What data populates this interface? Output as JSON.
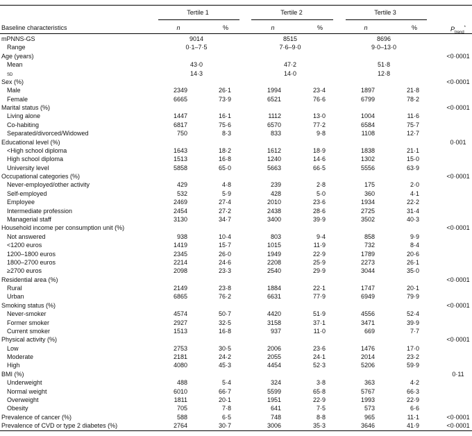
{
  "header": {
    "groups": [
      "Tertile 1",
      "Tertile 2",
      "Tertile 3"
    ],
    "label": "Baseline characteristics",
    "subheads": [
      "n",
      "%",
      "n",
      "%",
      "n",
      "%"
    ],
    "p": {
      "main": "P",
      "sub": "trend",
      "sup": "*"
    }
  },
  "sections": [
    {
      "label": "mPNNS-GS",
      "values": [
        "9014",
        "8515",
        "8696"
      ],
      "rows": [
        {
          "label": "Range",
          "values": [
            "0·1–7·5",
            "7·6–9·0",
            "9·0–13·0"
          ]
        }
      ]
    },
    {
      "label": "Age (years)",
      "p": "<0·0001",
      "rows": [
        {
          "label": "Mean",
          "values": [
            "43·0",
            "47·2",
            "51·8"
          ]
        },
        {
          "label": "sd",
          "values": [
            "14·3",
            "14·0",
            "12·8"
          ]
        }
      ]
    },
    {
      "label": "Sex (%)",
      "p": "<0·0001",
      "rows": [
        {
          "label": "Male",
          "cells": [
            "2349",
            "26·1",
            "1994",
            "23·4",
            "1897",
            "21·8"
          ]
        },
        {
          "label": "Female",
          "cells": [
            "6665",
            "73·9",
            "6521",
            "76·6",
            "6799",
            "78·2"
          ]
        }
      ]
    },
    {
      "label": "Marital status (%)",
      "p": "<0·0001",
      "rows": [
        {
          "label": "Living alone",
          "cells": [
            "1447",
            "16·1",
            "1112",
            "13·0",
            "1004",
            "11·6"
          ]
        },
        {
          "label": "Co-habiting",
          "cells": [
            "6817",
            "75·6",
            "6570",
            "77·2",
            "6584",
            "75·7"
          ]
        },
        {
          "label": "Separated/divorced/Widowed",
          "cells": [
            "750",
            "8·3",
            "833",
            "9·8",
            "1108",
            "12·7"
          ]
        }
      ]
    },
    {
      "label": "Educational level (%)",
      "p": "0·001",
      "rows": [
        {
          "label": "<High school diploma",
          "cells": [
            "1643",
            "18·2",
            "1612",
            "18·9",
            "1838",
            "21·1"
          ]
        },
        {
          "label": "High school diploma",
          "cells": [
            "1513",
            "16·8",
            "1240",
            "14·6",
            "1302",
            "15·0"
          ]
        },
        {
          "label": "University level",
          "cells": [
            "5858",
            "65·0",
            "5663",
            "66·5",
            "5556",
            "63·9"
          ]
        }
      ]
    },
    {
      "label": "Occupational categories (%)",
      "p": "<0·0001",
      "rows": [
        {
          "label": "Never-employed/other activity",
          "cells": [
            "429",
            "4·8",
            "239",
            "2·8",
            "175",
            "2·0"
          ]
        },
        {
          "label": "Self-employed",
          "cells": [
            "532",
            "5·9",
            "428",
            "5·0",
            "360",
            "4·1"
          ]
        },
        {
          "label": "Employee",
          "cells": [
            "2469",
            "27·4",
            "2010",
            "23·6",
            "1934",
            "22·2"
          ]
        },
        {
          "label": "Intermediate profession",
          "cells": [
            "2454",
            "27·2",
            "2438",
            "28·6",
            "2725",
            "31·4"
          ]
        },
        {
          "label": "Managerial staff",
          "cells": [
            "3130",
            "34·7",
            "3400",
            "39·9",
            "3502",
            "40·3"
          ]
        }
      ]
    },
    {
      "label": "Household income per consumption unit (%)",
      "p": "<0·0001",
      "rows": [
        {
          "label": "Not answered",
          "cells": [
            "938",
            "10·4",
            "803",
            "9·4",
            "858",
            "9·9"
          ]
        },
        {
          "label": "<1200 euros",
          "cells": [
            "1419",
            "15·7",
            "1015",
            "11·9",
            "732",
            "8·4"
          ]
        },
        {
          "label": "1200–1800 euros",
          "cells": [
            "2345",
            "26·0",
            "1949",
            "22·9",
            "1789",
            "20·6"
          ]
        },
        {
          "label": "1800–2700 euros",
          "cells": [
            "2214",
            "24·6",
            "2208",
            "25·9",
            "2273",
            "26·1"
          ]
        },
        {
          "label": "≥2700 euros",
          "cells": [
            "2098",
            "23·3",
            "2540",
            "29·9",
            "3044",
            "35·0"
          ]
        }
      ]
    },
    {
      "label": "Residential area (%)",
      "p": "<0·0001",
      "rows": [
        {
          "label": "Rural",
          "cells": [
            "2149",
            "23·8",
            "1884",
            "22·1",
            "1747",
            "20·1"
          ]
        },
        {
          "label": "Urban",
          "cells": [
            "6865",
            "76·2",
            "6631",
            "77·9",
            "6949",
            "79·9"
          ]
        }
      ]
    },
    {
      "label": "Smoking status (%)",
      "p": "<0·0001",
      "rows": [
        {
          "label": "Never-smoker",
          "cells": [
            "4574",
            "50·7",
            "4420",
            "51·9",
            "4556",
            "52·4"
          ]
        },
        {
          "label": "Former smoker",
          "cells": [
            "2927",
            "32·5",
            "3158",
            "37·1",
            "3471",
            "39·9"
          ]
        },
        {
          "label": "Current smoker",
          "cells": [
            "1513",
            "16·8",
            "937",
            "11·0",
            "669",
            "7·7"
          ]
        }
      ]
    },
    {
      "label": "Physical activity (%)",
      "p": "<0·0001",
      "rows": [
        {
          "label": "Low",
          "cells": [
            "2753",
            "30·5",
            "2006",
            "23·6",
            "1476",
            "17·0"
          ]
        },
        {
          "label": "Moderate",
          "cells": [
            "2181",
            "24·2",
            "2055",
            "24·1",
            "2014",
            "23·2"
          ]
        },
        {
          "label": "High",
          "cells": [
            "4080",
            "45·3",
            "4454",
            "52·3",
            "5206",
            "59·9"
          ]
        }
      ]
    },
    {
      "label": "BMI (%)",
      "p": "0·11",
      "rows": [
        {
          "label": "Underweight",
          "cells": [
            "488",
            "5·4",
            "324",
            "3·8",
            "363",
            "4·2"
          ]
        },
        {
          "label": "Normal weight",
          "cells": [
            "6010",
            "66·7",
            "5599",
            "65·8",
            "5767",
            "66·3"
          ]
        },
        {
          "label": "Overweight",
          "cells": [
            "1811",
            "20·1",
            "1951",
            "22·9",
            "1993",
            "22·9"
          ]
        },
        {
          "label": "Obesity",
          "cells": [
            "705",
            "7·8",
            "641",
            "7·5",
            "573",
            "6·6"
          ]
        }
      ]
    },
    {
      "label": "Prevalence of cancer (%)",
      "p": "<0·0001",
      "cells": [
        "588",
        "6·5",
        "748",
        "8·8",
        "965",
        "11·1"
      ]
    },
    {
      "label": "Prevalence of CVD or type 2 diabetes (%)",
      "p": "<0·0001",
      "cells": [
        "2764",
        "30·7",
        "3006",
        "35·3",
        "3646",
        "41·9"
      ]
    }
  ]
}
